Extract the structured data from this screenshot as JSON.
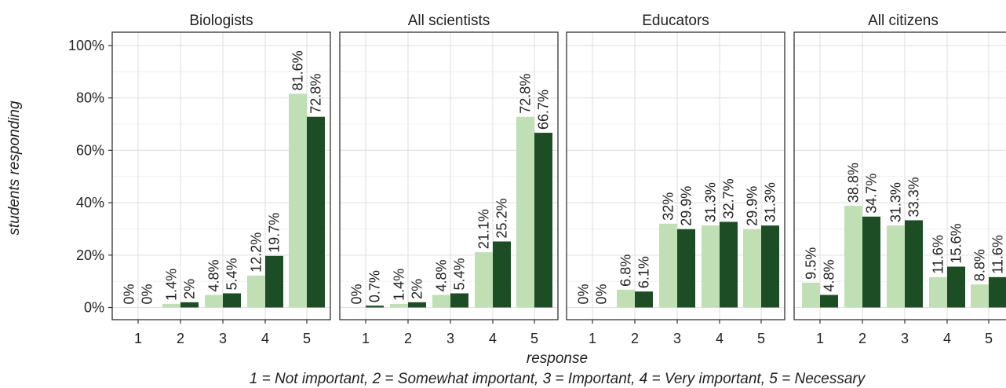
{
  "chart_data": {
    "type": "bar",
    "ylabel": "students responding",
    "xlabel": "response",
    "caption": "1 = Not important, 2 = Somewhat important, 3 = Important, 4 = Very important, 5 = Necessary",
    "ylim": [
      0,
      100
    ],
    "yticks": [
      "0%",
      "20%",
      "40%",
      "60%",
      "80%",
      "100%"
    ],
    "grid": true,
    "colors": [
      "#c0dfb4",
      "#1c4d24"
    ],
    "categories": [
      "1",
      "2",
      "3",
      "4",
      "5"
    ],
    "facets": [
      {
        "title": "Biologists",
        "series": [
          {
            "values": [
              0,
              1.4,
              4.8,
              12.2,
              81.6
            ],
            "labels": [
              "0%",
              "1.4%",
              "4.8%",
              "12.2%",
              "81.6%"
            ]
          },
          {
            "values": [
              0,
              2,
              5.4,
              19.7,
              72.8
            ],
            "labels": [
              "0%",
              "2%",
              "5.4%",
              "19.7%",
              "72.8%"
            ]
          }
        ]
      },
      {
        "title": "All scientists",
        "series": [
          {
            "values": [
              0,
              1.4,
              4.8,
              21.1,
              72.8
            ],
            "labels": [
              "0%",
              "1.4%",
              "4.8%",
              "21.1%",
              "72.8%"
            ]
          },
          {
            "values": [
              0.7,
              2,
              5.4,
              25.2,
              66.7
            ],
            "labels": [
              "0.7%",
              "2%",
              "5.4%",
              "25.2%",
              "66.7%"
            ]
          }
        ]
      },
      {
        "title": "Educators",
        "series": [
          {
            "values": [
              0,
              6.8,
              32,
              31.3,
              29.9
            ],
            "labels": [
              "0%",
              "6.8%",
              "32%",
              "31.3%",
              "29.9%"
            ]
          },
          {
            "values": [
              0,
              6.1,
              29.9,
              32.7,
              31.3
            ],
            "labels": [
              "0%",
              "6.1%",
              "29.9%",
              "32.7%",
              "31.3%"
            ]
          }
        ]
      },
      {
        "title": "All citizens",
        "series": [
          {
            "values": [
              9.5,
              38.8,
              31.3,
              11.6,
              8.8
            ],
            "labels": [
              "9.5%",
              "38.8%",
              "31.3%",
              "11.6%",
              "8.8%"
            ]
          },
          {
            "values": [
              4.8,
              34.7,
              33.3,
              15.6,
              11.6
            ],
            "labels": [
              "4.8%",
              "34.7%",
              "33.3%",
              "15.6%",
              "11.6%"
            ]
          }
        ]
      }
    ]
  }
}
